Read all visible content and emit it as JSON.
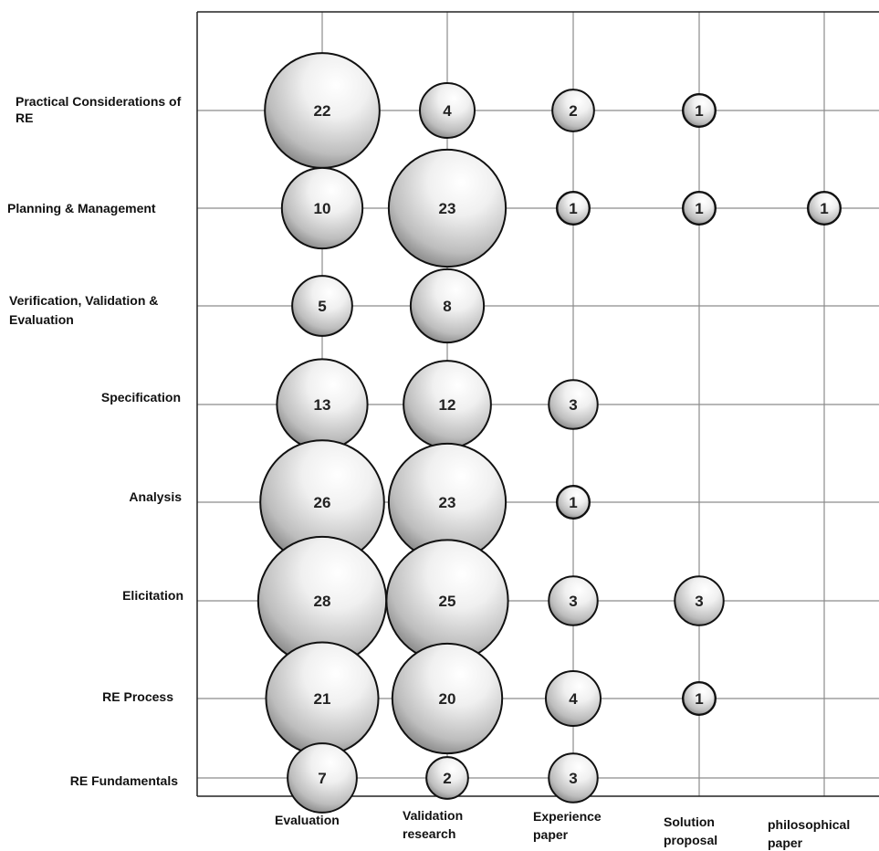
{
  "chart_data": {
    "type": "bubble",
    "columns": [
      "Evaluation",
      "Validation research",
      "Experience paper",
      "Solution proposal",
      "philosophical paper"
    ],
    "rows": [
      "Practical Considerations of RE",
      "Planning & Management",
      "Verification, Validation & Evaluation",
      "Specification",
      "Analysis",
      "Elicitation",
      "RE Process",
      "RE Fundamentals"
    ],
    "values": [
      [
        22,
        4,
        2,
        1,
        null
      ],
      [
        10,
        23,
        1,
        1,
        1
      ],
      [
        5,
        8,
        null,
        null,
        null
      ],
      [
        13,
        12,
        3,
        null,
        null
      ],
      [
        26,
        23,
        1,
        null,
        null
      ],
      [
        28,
        25,
        3,
        3,
        null
      ],
      [
        21,
        20,
        4,
        1,
        null
      ],
      [
        7,
        2,
        3,
        null,
        null
      ]
    ],
    "grid": true
  }
}
